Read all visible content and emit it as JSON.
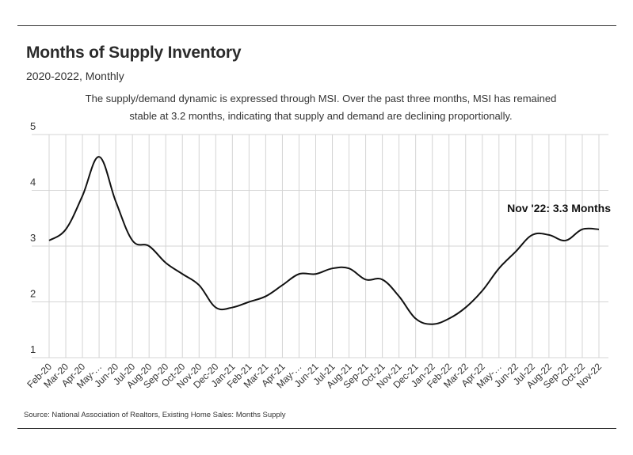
{
  "header": {
    "title": "Months of Supply Inventory",
    "subtitle": "2020-2022, Monthly",
    "annotation_line1": "The supply/demand dynamic is expressed through MSI. Over the past three months, MSI has remained",
    "annotation_line2": "stable at 3.2 months, indicating that supply and demand are declining proportionally."
  },
  "footer": {
    "source": "Source:  National Association of Realtors, Existing Home Sales: Months Supply"
  },
  "chart_data": {
    "type": "line",
    "title": "Months of Supply Inventory",
    "subtitle": "2020-2022, Monthly",
    "xlabel": "",
    "ylabel": "",
    "ylim": [
      1,
      5
    ],
    "yticks": [
      1,
      2,
      3,
      4,
      5
    ],
    "grid": true,
    "line_color": "#111111",
    "categories": [
      "Feb-20",
      "Mar-20",
      "Apr-20",
      "May-…",
      "Jun-20",
      "Jul-20",
      "Aug-20",
      "Sep-20",
      "Oct-20",
      "Nov-20",
      "Dec-20",
      "Jan-21",
      "Feb-21",
      "Mar-21",
      "Apr-21",
      "May-…",
      "Jun-21",
      "Jul-21",
      "Aug-21",
      "Sep-21",
      "Oct-21",
      "Nov-21",
      "Dec-21",
      "Jan-22",
      "Feb-22",
      "Mar-22",
      "Apr-22",
      "May-…",
      "Jun-22",
      "Jul-22",
      "Aug-22",
      "Sep-22",
      "Oct-22",
      "Nov-22"
    ],
    "series": [
      {
        "values": [
          3.1,
          3.3,
          3.9,
          4.6,
          3.8,
          3.1,
          3.0,
          2.7,
          2.5,
          2.3,
          1.9,
          1.9,
          2.0,
          2.1,
          2.3,
          2.5,
          2.5,
          2.6,
          2.6,
          2.4,
          2.4,
          2.1,
          1.7,
          1.6,
          1.7,
          1.9,
          2.2,
          2.6,
          2.9,
          3.2,
          3.2,
          3.1,
          3.3,
          3.3
        ]
      }
    ],
    "callout": "Nov '22: 3.3 Months"
  }
}
